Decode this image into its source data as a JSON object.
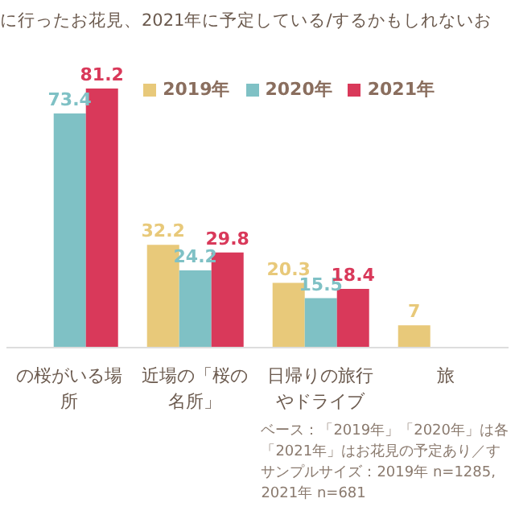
{
  "chart_data": {
    "type": "bar",
    "title": "に行ったお花見、2021年に予定している/するかもしれないお",
    "categories": [
      "の桜がいる場所",
      "近場の「桜の名所」",
      "日帰りの旅行やドライブ",
      "旅"
    ],
    "series": [
      {
        "name": "2019年",
        "color": "#e8c97a",
        "values": [
          null,
          32.2,
          20.3,
          7
        ],
        "value_labels": [
          null,
          "32.2",
          "20.3",
          "7"
        ]
      },
      {
        "name": "2020年",
        "color": "#7fc1c5",
        "values": [
          73.4,
          24.2,
          15.5,
          null
        ],
        "value_labels": [
          "73.4",
          "24.2",
          "15.5",
          null
        ]
      },
      {
        "name": "2021年",
        "color": "#d9395a",
        "values": [
          81.2,
          29.8,
          18.4,
          null
        ],
        "value_labels": [
          "81.2",
          "29.8",
          "18.4",
          null
        ]
      }
    ],
    "legend": "top right",
    "tick_labels": "x",
    "annotations": [
      "ベース：「2019年」「2020年」は各",
      "「2021年」はお花見の予定あり／す",
      "サンプルサイズ：2019年 n=1285,",
      "2021年 n=681"
    ]
  }
}
